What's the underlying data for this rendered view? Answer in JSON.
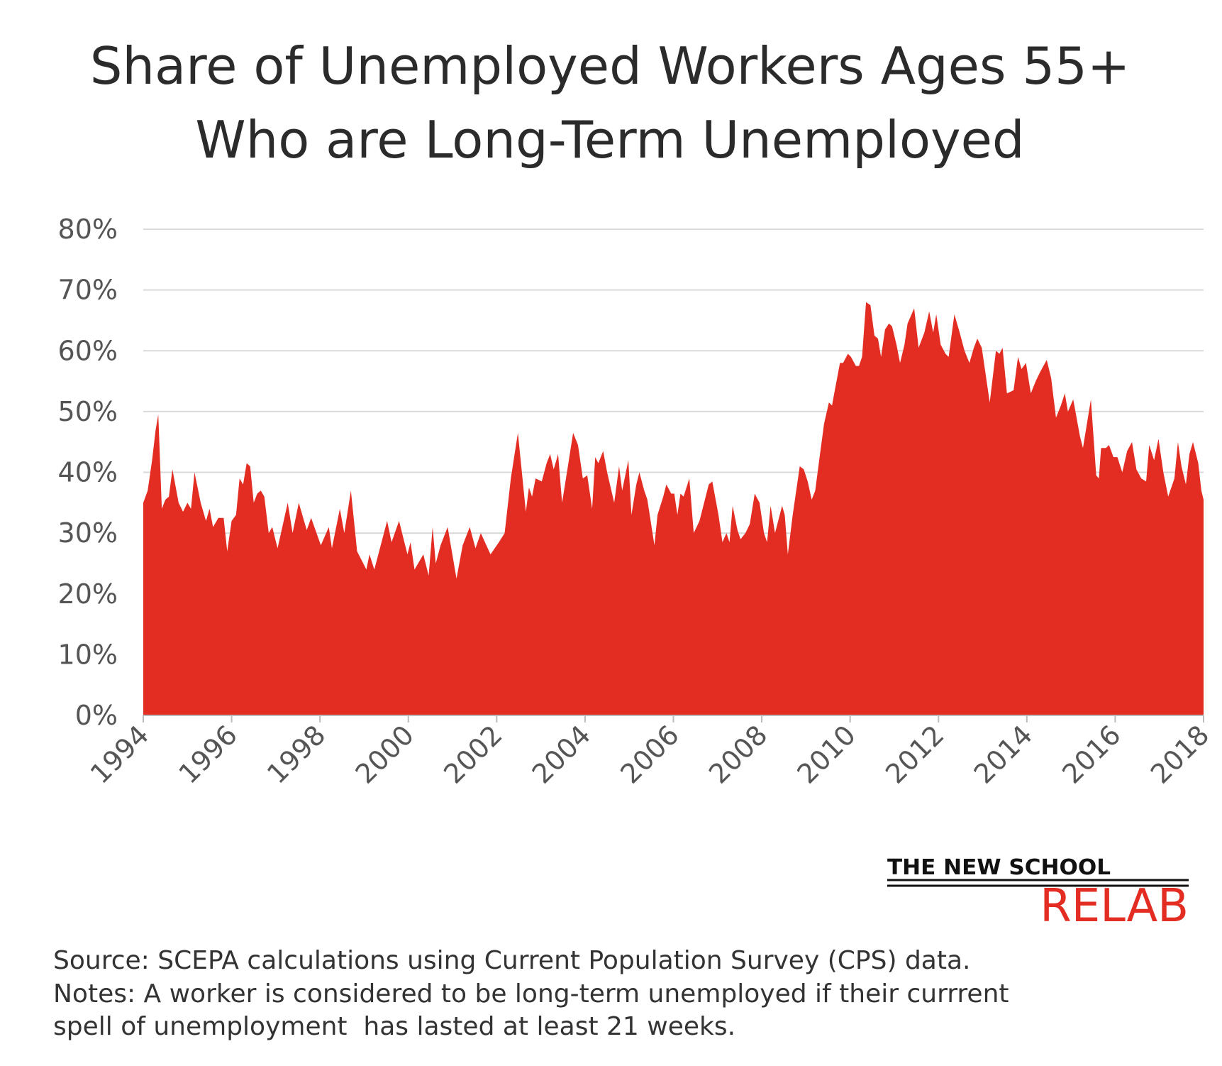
{
  "chart_data": {
    "type": "area",
    "title": [
      "Share of Unemployed Workers Ages 55+",
      "Who are Long-Term Unemployed"
    ],
    "color": "#e32d22",
    "grid": true,
    "xlim": [
      1994,
      2018
    ],
    "xticks": [
      1994,
      1996,
      1998,
      2000,
      2002,
      2004,
      2006,
      2008,
      2010,
      2012,
      2014,
      2016,
      2018
    ],
    "ylim": [
      0,
      80
    ],
    "yticks": [
      {
        "value": 0,
        "label": "0%"
      },
      {
        "value": 10,
        "label": "10%"
      },
      {
        "value": 20,
        "label": "20%"
      },
      {
        "value": 30,
        "label": "30%"
      },
      {
        "value": 40,
        "label": "40%"
      },
      {
        "value": 50,
        "label": "50%"
      },
      {
        "value": 60,
        "label": "60%"
      },
      {
        "value": 70,
        "label": "70%"
      },
      {
        "value": 80,
        "label": "80%"
      }
    ],
    "x": [
      1994.0,
      1994.1,
      1994.2,
      1994.28,
      1994.34,
      1994.42,
      1994.5,
      1994.58,
      1994.66,
      1994.8,
      1994.9,
      1995.0,
      1995.08,
      1995.16,
      1995.3,
      1995.42,
      1995.5,
      1995.58,
      1995.7,
      1995.82,
      1995.9,
      1996.0,
      1996.1,
      1996.18,
      1996.26,
      1996.34,
      1996.42,
      1996.5,
      1996.58,
      1996.66,
      1996.74,
      1996.84,
      1996.92,
      1997.04,
      1997.27,
      1997.38,
      1997.52,
      1997.7,
      1997.8,
      1998.02,
      1998.2,
      1998.27,
      1998.45,
      1998.55,
      1998.7,
      1998.84,
      1999.05,
      1999.12,
      1999.23,
      1999.52,
      1999.62,
      1999.79,
      1999.98,
      2000.05,
      2000.14,
      2000.34,
      2000.46,
      2000.55,
      2000.62,
      2000.73,
      2000.89,
      2001.09,
      2001.23,
      2001.39,
      2001.52,
      2001.64,
      2001.86,
      2002.05,
      2002.18,
      2002.32,
      2002.48,
      2002.66,
      2002.73,
      2002.8,
      2002.88,
      2003.02,
      2003.13,
      2003.21,
      2003.29,
      2003.39,
      2003.48,
      2003.59,
      2003.73,
      2003.84,
      2003.95,
      2004.05,
      2004.16,
      2004.23,
      2004.3,
      2004.41,
      2004.5,
      2004.66,
      2004.77,
      2004.84,
      2004.98,
      2005.05,
      2005.16,
      2005.23,
      2005.34,
      2005.41,
      2005.57,
      2005.64,
      2005.77,
      2005.84,
      2005.95,
      2006.02,
      2006.09,
      2006.16,
      2006.23,
      2006.36,
      2006.46,
      2006.59,
      2006.66,
      2006.8,
      2006.88,
      2007.02,
      2007.11,
      2007.2,
      2007.27,
      2007.34,
      2007.45,
      2007.52,
      2007.63,
      2007.73,
      2007.84,
      2007.95,
      2008.05,
      2008.12,
      2008.2,
      2008.3,
      2008.46,
      2008.52,
      2008.59,
      2008.7,
      2008.86,
      2008.95,
      2009.04,
      2009.13,
      2009.21,
      2009.3,
      2009.41,
      2009.52,
      2009.59,
      2009.64,
      2009.77,
      2009.84,
      2009.95,
      2010.02,
      2010.13,
      2010.2,
      2010.27,
      2010.36,
      2010.46,
      2010.55,
      2010.63,
      2010.7,
      2010.79,
      2010.88,
      2010.95,
      2011.05,
      2011.13,
      2011.23,
      2011.3,
      2011.45,
      2011.55,
      2011.68,
      2011.79,
      2011.88,
      2011.95,
      2012.05,
      2012.16,
      2012.23,
      2012.36,
      2012.48,
      2012.59,
      2012.7,
      2012.8,
      2012.88,
      2012.98,
      2013.09,
      2013.16,
      2013.3,
      2013.38,
      2013.45,
      2013.55,
      2013.7,
      2013.8,
      2013.88,
      2013.98,
      2014.09,
      2014.2,
      2014.3,
      2014.45,
      2014.55,
      2014.66,
      2014.77,
      2014.86,
      2014.93,
      2015.05,
      2015.2,
      2015.27,
      2015.45,
      2015.57,
      2015.63,
      2015.68,
      2015.79,
      2015.86,
      2015.96,
      2016.05,
      2016.16,
      2016.27,
      2016.38,
      2016.48,
      2016.59,
      2016.7,
      2016.77,
      2016.88,
      2016.98,
      2017.09,
      2017.2,
      2017.34,
      2017.42,
      2017.5,
      2017.6,
      2017.68,
      2017.76,
      2017.88,
      2017.95,
      2018.0
    ],
    "values": [
      35,
      37,
      42,
      47,
      49.5,
      34,
      35.5,
      36,
      40.5,
      35,
      33.5,
      35,
      34,
      40,
      35,
      32,
      34,
      31,
      32.5,
      32.5,
      27,
      32,
      33,
      39,
      38,
      41.5,
      41,
      35,
      36.5,
      37,
      36,
      30,
      31,
      27.5,
      35,
      30,
      35,
      30.5,
      32.5,
      28,
      31,
      27.5,
      34,
      30,
      37,
      27,
      24,
      26.5,
      24,
      32,
      28.5,
      32,
      26.5,
      28.5,
      24,
      26.5,
      23,
      31,
      25,
      28,
      31,
      22.5,
      28,
      31,
      27.5,
      30,
      26.5,
      28.5,
      30,
      39,
      46.5,
      33.5,
      37.5,
      36,
      39,
      38.5,
      41.5,
      43,
      40.5,
      43,
      35,
      40,
      46.5,
      44.5,
      39,
      39.5,
      34,
      42.5,
      41.5,
      43.5,
      40,
      35,
      41,
      37,
      42,
      33,
      38,
      40,
      37,
      35.5,
      28,
      33,
      36,
      38,
      36.5,
      36.5,
      33,
      36.5,
      36,
      39,
      30,
      32,
      34,
      38,
      38.5,
      33,
      28.5,
      30,
      28.5,
      34.5,
      30.5,
      29,
      30,
      31.5,
      36.5,
      35,
      30,
      28.5,
      34.5,
      30,
      34.5,
      33,
      26.5,
      33,
      41,
      40.5,
      38.5,
      35.5,
      37,
      42,
      48,
      51.5,
      51,
      53,
      58,
      58,
      59.5,
      59,
      57.5,
      57.5,
      59,
      68,
      67.5,
      62.5,
      62,
      59,
      63.5,
      64.5,
      64,
      61,
      58,
      61,
      64.5,
      67,
      60.5,
      63,
      66.5,
      63,
      66,
      61,
      59.5,
      59,
      66,
      63,
      60,
      58,
      60.5,
      62,
      60.5,
      55,
      51.5,
      60,
      59.5,
      60.5,
      53,
      53.5,
      59,
      57,
      58,
      53,
      55,
      56.5,
      58.5,
      55.5,
      49,
      51,
      53,
      50,
      52,
      46,
      44,
      52,
      39.5,
      39,
      44,
      44,
      44.5,
      42.5,
      42.5,
      40,
      43.5,
      45,
      40.5,
      39,
      38.5,
      44.5,
      42,
      45.5,
      40,
      36,
      39,
      45,
      41,
      38,
      43,
      45,
      41.5,
      37,
      35.5
    ],
    "source": "Source: SCEPA calculations using Current Population Survey (CPS) data.",
    "notes": [
      "Notes: A worker is considered to be long-term unemployed if their currrent",
      "spell of unemployment  has lasted at least 21 weeks."
    ]
  },
  "logo": {
    "line1": "THE NEW SCHOOL",
    "line2": "RELAB"
  }
}
